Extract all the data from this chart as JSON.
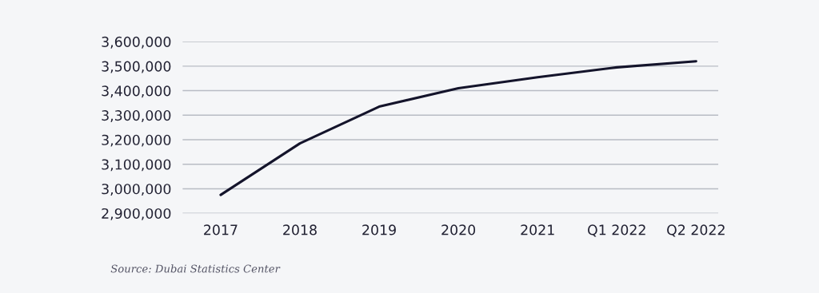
{
  "chart_data": {
    "type": "line",
    "categories": [
      "2017",
      "2018",
      "2019",
      "2020",
      "2021",
      "Q1 2022",
      "Q2 2022"
    ],
    "series": [
      {
        "color": "#14142b",
        "values": [
          2975000,
          3185000,
          3335000,
          3410000,
          3455000,
          3495000,
          3520000
        ]
      }
    ],
    "ylim": [
      2900000,
      3600000
    ],
    "yticks": [
      {
        "value": 2900000,
        "label": "2,900,000"
      },
      {
        "value": 3000000,
        "label": "3,000,000"
      },
      {
        "value": 3100000,
        "label": "3,100,000"
      },
      {
        "value": 3200000,
        "label": "3,200,000"
      },
      {
        "value": 3300000,
        "label": "3,300,000"
      },
      {
        "value": 3400000,
        "label": "3,400,000"
      },
      {
        "value": 3500000,
        "label": "3,500,000"
      },
      {
        "value": 3600000,
        "label": "3,600,000"
      }
    ],
    "grid": "y",
    "annotations": [
      "Source: Dubai Statistics Center"
    ]
  }
}
